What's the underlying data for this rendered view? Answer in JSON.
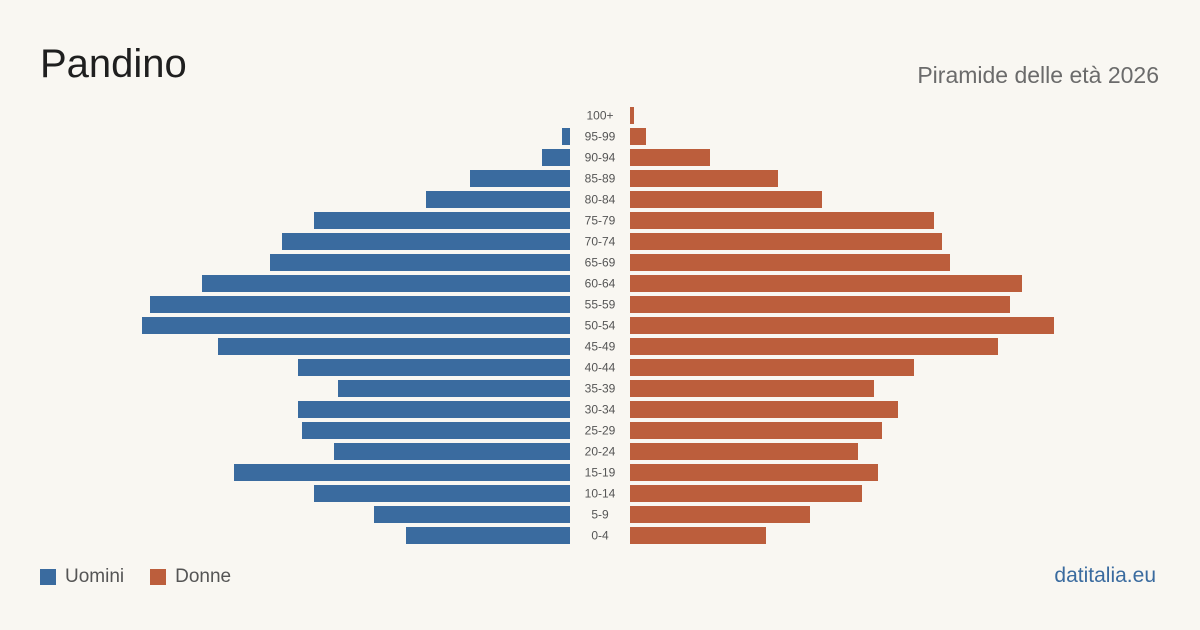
{
  "header": {
    "title": "Pandino",
    "subtitle": "Piramide delle età 2026"
  },
  "legend": {
    "men_label": "Uomini",
    "women_label": "Donne"
  },
  "brand": "datitalia.eu",
  "colors": {
    "men": "#3a6b9f",
    "women": "#bc5e3c",
    "background": "#f9f7f2"
  },
  "chart_data": {
    "type": "bar",
    "orientation": "horizontal-pyramid",
    "title": "Pandino",
    "subtitle": "Piramide delle età 2026",
    "categories": [
      "100+",
      "95-99",
      "90-94",
      "85-89",
      "80-84",
      "75-79",
      "70-74",
      "65-69",
      "60-64",
      "55-59",
      "50-54",
      "45-49",
      "40-44",
      "35-39",
      "30-34",
      "25-29",
      "20-24",
      "15-19",
      "10-14",
      "5-9",
      "0-4"
    ],
    "series": [
      {
        "name": "Uomini",
        "values": [
          0,
          2,
          7,
          25,
          36,
          64,
          72,
          75,
          92,
          105,
          107,
          88,
          68,
          58,
          68,
          67,
          59,
          84,
          64,
          49,
          41
        ]
      },
      {
        "name": "Donne",
        "values": [
          1,
          4,
          20,
          37,
          48,
          76,
          78,
          80,
          98,
          95,
          106,
          92,
          71,
          61,
          67,
          63,
          57,
          62,
          58,
          45,
          34
        ]
      }
    ],
    "legend": "bottom-left",
    "grid": false
  }
}
